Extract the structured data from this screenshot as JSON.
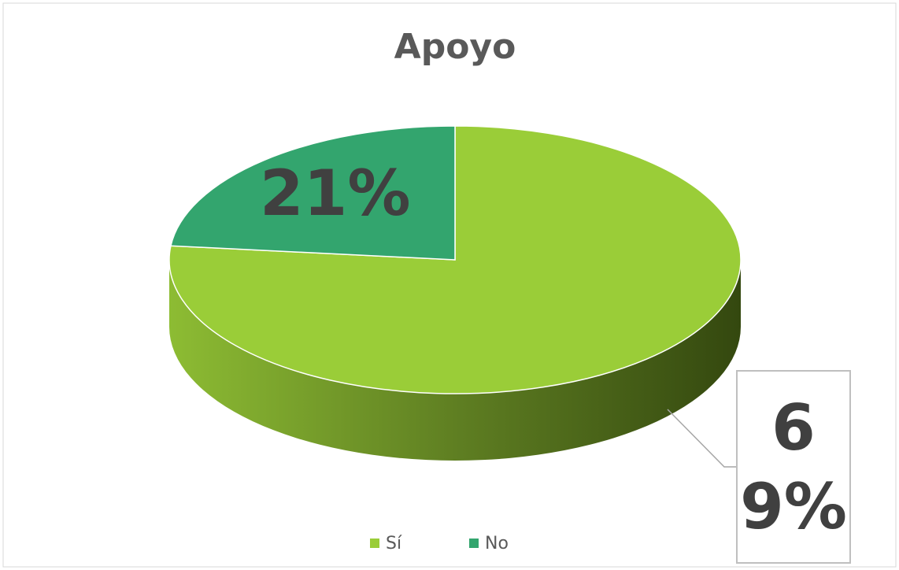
{
  "chart_data": {
    "type": "pie",
    "title": "Apoyo",
    "categories": [
      "Sí",
      "No"
    ],
    "values": [
      69,
      21
    ],
    "value_labels": [
      "69%",
      "21%"
    ],
    "colors": [
      "#9acd38",
      "#33a56e"
    ],
    "legend": "bottom"
  }
}
